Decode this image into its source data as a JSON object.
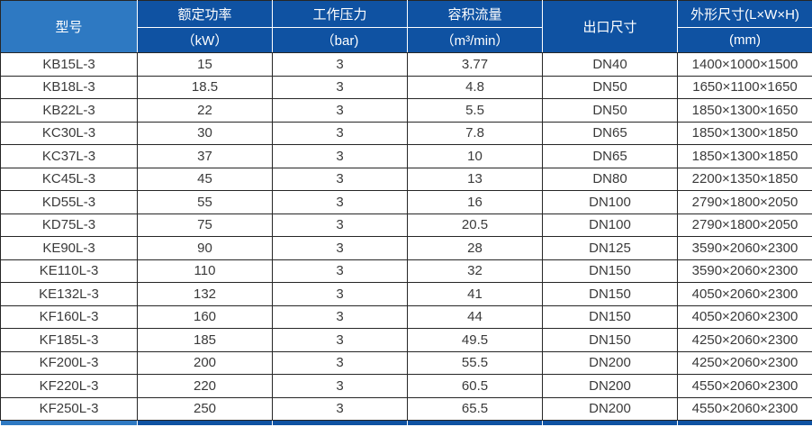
{
  "chart_data": {
    "type": "table",
    "title": "",
    "columns": [
      {
        "key": "model",
        "label": "型号",
        "unit": ""
      },
      {
        "key": "power",
        "label": "额定功率",
        "unit": "（kW）"
      },
      {
        "key": "pressure",
        "label": "工作压力",
        "unit": "（bar)"
      },
      {
        "key": "flow",
        "label": "容积流量",
        "unit": "（m³/min）"
      },
      {
        "key": "outlet",
        "label": "出口尺寸",
        "unit": ""
      },
      {
        "key": "dimensions",
        "label": "外形尺寸(L×W×H)",
        "unit": "(mm)"
      }
    ],
    "rows": [
      [
        "KB15L-3",
        "15",
        "3",
        "3.77",
        "DN40",
        "1400×1000×1500"
      ],
      [
        "KB18L-3",
        "18.5",
        "3",
        "4.8",
        "DN50",
        "1650×1100×1650"
      ],
      [
        "KB22L-3",
        "22",
        "3",
        "5.5",
        "DN50",
        "1850×1300×1650"
      ],
      [
        "KC30L-3",
        "30",
        "3",
        "7.8",
        "DN65",
        "1850×1300×1850"
      ],
      [
        "KC37L-3",
        "37",
        "3",
        "10",
        "DN65",
        "1850×1300×1850"
      ],
      [
        "KC45L-3",
        "45",
        "3",
        "13",
        "DN80",
        "2200×1350×1850"
      ],
      [
        "KD55L-3",
        "55",
        "3",
        "16",
        "DN100",
        "2790×1800×2050"
      ],
      [
        "KD75L-3",
        "75",
        "3",
        "20.5",
        "DN100",
        "2790×1800×2050"
      ],
      [
        "KE90L-3",
        "90",
        "3",
        "28",
        "DN125",
        "3590×2060×2300"
      ],
      [
        "KE110L-3",
        "110",
        "3",
        "32",
        "DN150",
        "3590×2060×2300"
      ],
      [
        "KE132L-3",
        "132",
        "3",
        "41",
        "DN150",
        "4050×2060×2300"
      ],
      [
        "KF160L-3",
        "160",
        "3",
        "44",
        "DN150",
        "4050×2060×2300"
      ],
      [
        "KF185L-3",
        "185",
        "3",
        "49.5",
        "DN150",
        "4250×2060×2300"
      ],
      [
        "KF200L-3",
        "200",
        "3",
        "55.5",
        "DN200",
        "4250×2060×2300"
      ],
      [
        "KF220L-3",
        "220",
        "3",
        "60.5",
        "DN200",
        "4550×2060×2300"
      ],
      [
        "KF250L-3",
        "250",
        "3",
        "65.5",
        "DN200",
        "4550×2060×2300"
      ]
    ]
  },
  "colors": {
    "header_dark_blue": "#0f52a2",
    "header_light_blue": "#2e79c2",
    "border": "#262626",
    "header_text": "#ffffff",
    "body_text": "#3a3a3a",
    "row_background": "#ffffff"
  }
}
